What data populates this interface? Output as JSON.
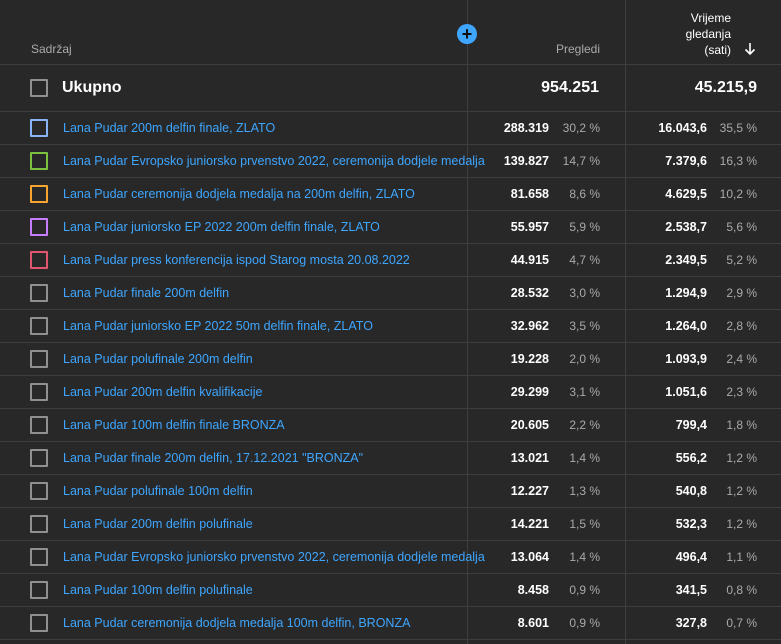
{
  "header": {
    "content_label": "Sadržaj",
    "views_label": "Pregledi",
    "watch_label_line1": "Vrijeme",
    "watch_label_line2": "gledanja",
    "watch_label_line3": "(sati)"
  },
  "total": {
    "label": "Ukupno",
    "views": "954.251",
    "watch": "45.215,9"
  },
  "rows": [
    {
      "title": "Lana Pudar 200m delfin finale, ZLATO",
      "views": "288.319",
      "views_pct": "30,2 %",
      "watch": "16.043,6",
      "watch_pct": "35,5 %",
      "color": "#8ab4f8"
    },
    {
      "title": "Lana Pudar Evropsko juniorsko prvenstvo 2022, ceremonija dodjele medalja",
      "views": "139.827",
      "views_pct": "14,7 %",
      "watch": "7.379,6",
      "watch_pct": "16,3 %",
      "color": "#7cc242"
    },
    {
      "title": "Lana Pudar ceremonija dodjela medalja na 200m delfin, ZLATO",
      "views": "81.658",
      "views_pct": "8,6 %",
      "watch": "4.629,5",
      "watch_pct": "10,2 %",
      "color": "#f7a531"
    },
    {
      "title": "Lana Pudar juniorsko EP 2022 200m delfin finale, ZLATO",
      "views": "55.957",
      "views_pct": "5,9 %",
      "watch": "2.538,7",
      "watch_pct": "5,6 %",
      "color": "#c77dff"
    },
    {
      "title": "Lana Pudar press konferencija ispod Starog mosta 20.08.2022",
      "views": "44.915",
      "views_pct": "4,7 %",
      "watch": "2.349,5",
      "watch_pct": "5,2 %",
      "color": "#e0566f"
    },
    {
      "title": "Lana Pudar finale 200m delfin",
      "views": "28.532",
      "views_pct": "3,0 %",
      "watch": "1.294,9",
      "watch_pct": "2,9 %",
      "color": "#909090"
    },
    {
      "title": "Lana Pudar juniorsko EP 2022 50m delfin finale, ZLATO",
      "views": "32.962",
      "views_pct": "3,5 %",
      "watch": "1.264,0",
      "watch_pct": "2,8 %",
      "color": "#909090"
    },
    {
      "title": "Lana Pudar polufinale 200m delfin",
      "views": "19.228",
      "views_pct": "2,0 %",
      "watch": "1.093,9",
      "watch_pct": "2,4 %",
      "color": "#909090"
    },
    {
      "title": "Lana Pudar 200m delfin kvalifikacije",
      "views": "29.299",
      "views_pct": "3,1 %",
      "watch": "1.051,6",
      "watch_pct": "2,3 %",
      "color": "#909090"
    },
    {
      "title": "Lana Pudar 100m delfin finale BRONZA",
      "views": "20.605",
      "views_pct": "2,2 %",
      "watch": "799,4",
      "watch_pct": "1,8 %",
      "color": "#909090"
    },
    {
      "title": "Lana Pudar finale 200m delfin, 17.12.2021 \"BRONZA\"",
      "views": "13.021",
      "views_pct": "1,4 %",
      "watch": "556,2",
      "watch_pct": "1,2 %",
      "color": "#909090"
    },
    {
      "title": "Lana Pudar polufinale 100m delfin",
      "views": "12.227",
      "views_pct": "1,3 %",
      "watch": "540,8",
      "watch_pct": "1,2 %",
      "color": "#909090"
    },
    {
      "title": "Lana Pudar 200m delfin polufinale",
      "views": "14.221",
      "views_pct": "1,5 %",
      "watch": "532,3",
      "watch_pct": "1,2 %",
      "color": "#909090"
    },
    {
      "title": "Lana Pudar Evropsko juniorsko prvenstvo 2022, ceremonija dodjele medalja",
      "views": "13.064",
      "views_pct": "1,4 %",
      "watch": "496,4",
      "watch_pct": "1,1 %",
      "color": "#909090"
    },
    {
      "title": "Lana Pudar 100m delfin polufinale",
      "views": "8.458",
      "views_pct": "0,9 %",
      "watch": "341,5",
      "watch_pct": "0,8 %",
      "color": "#909090"
    },
    {
      "title": "Lana Pudar ceremonija dodjela medalja 100m delfin, BRONZA",
      "views": "8.601",
      "views_pct": "0,9 %",
      "watch": "327,8",
      "watch_pct": "0,7 %",
      "color": "#909090"
    }
  ]
}
